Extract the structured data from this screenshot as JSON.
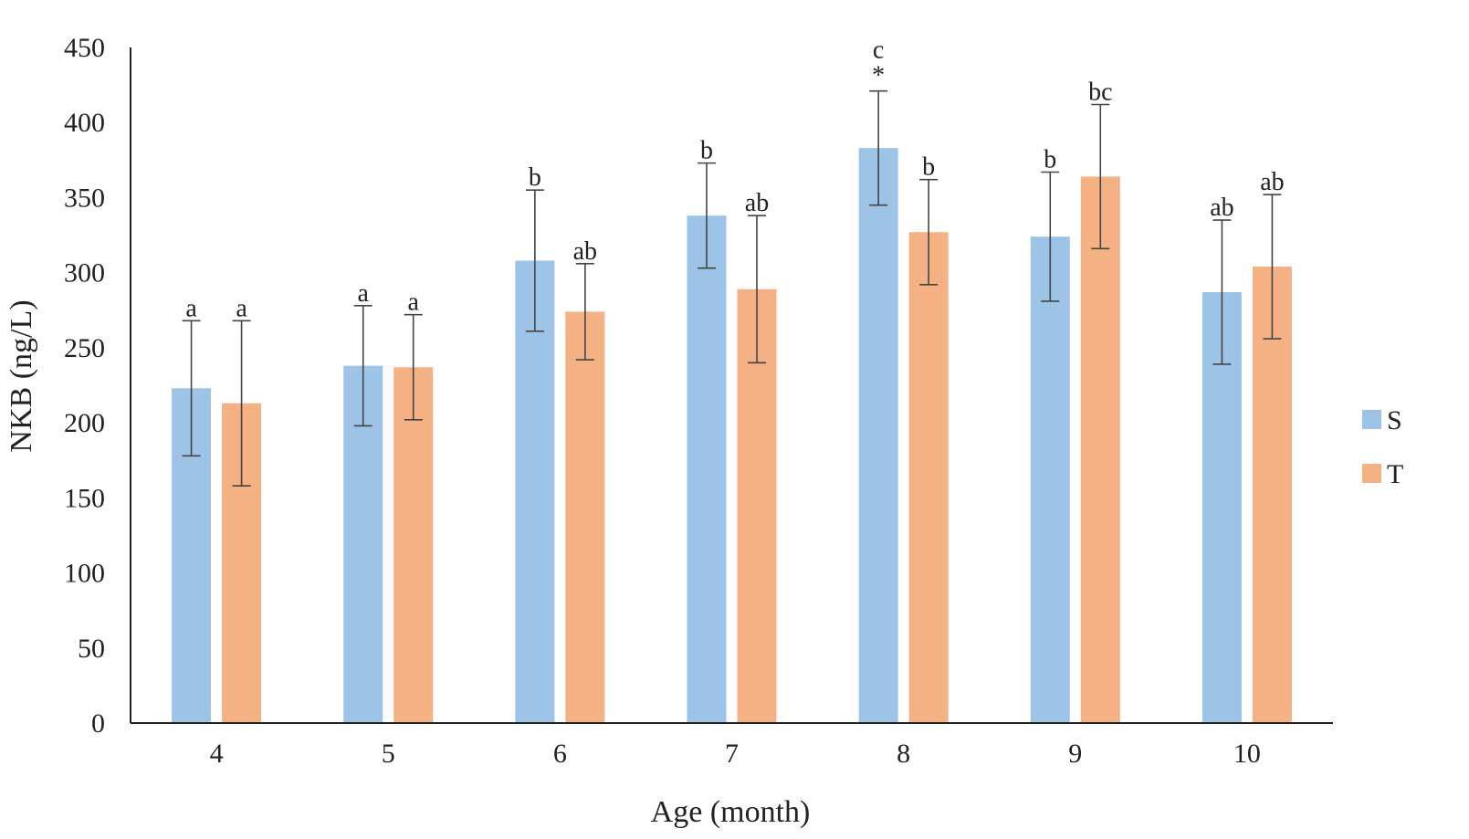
{
  "chart_data": {
    "type": "bar",
    "xlabel": "Age (month)",
    "ylabel": "NKB (ng/L)",
    "categories": [
      "4",
      "5",
      "6",
      "7",
      "8",
      "9",
      "10"
    ],
    "ylim": [
      0,
      450
    ],
    "yticks": [
      0,
      50,
      100,
      150,
      200,
      250,
      300,
      350,
      400,
      450
    ],
    "grid": false,
    "legend": "right",
    "series": [
      {
        "name": "S",
        "color": "#9DC3E6",
        "values": [
          223,
          238,
          308,
          338,
          383,
          324,
          287
        ],
        "errors": [
          45,
          40,
          47,
          35,
          38,
          43,
          48
        ],
        "labels": [
          "a",
          "a",
          "b",
          "b",
          "c",
          "b",
          "ab"
        ],
        "marks": [
          "",
          "",
          "",
          "",
          "*",
          "",
          ""
        ]
      },
      {
        "name": "T",
        "color": "#F4B183",
        "values": [
          213,
          237,
          274,
          289,
          327,
          364,
          304
        ],
        "errors": [
          55,
          35,
          32,
          49,
          35,
          48,
          48
        ],
        "labels": [
          "a",
          "a",
          "ab",
          "ab",
          "b",
          "bc",
          "ab"
        ],
        "marks": [
          "",
          "",
          "",
          "",
          "",
          "",
          ""
        ]
      }
    ]
  }
}
